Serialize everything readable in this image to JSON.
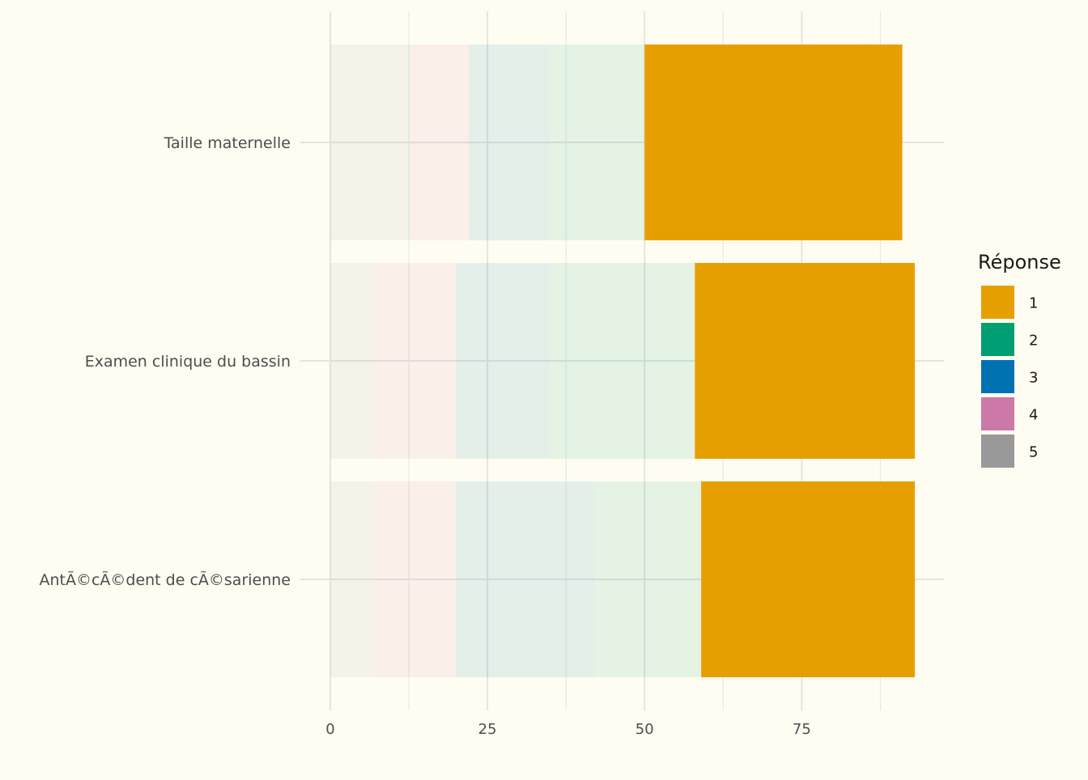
{
  "chart_data": {
    "type": "bar",
    "orientation": "horizontal",
    "stacked": true,
    "categories": [
      "Taille maternelle",
      "Examen clinique du bassin",
      "AntÃ©cÃ©dent de cÃ©sarienne"
    ],
    "stack_order": [
      "5",
      "4",
      "3",
      "2",
      "1"
    ],
    "series": [
      {
        "name": "1",
        "color": "#e69f00",
        "values": [
          41,
          35,
          34
        ]
      },
      {
        "name": "2",
        "color": "#009e73",
        "values": [
          15,
          23,
          17
        ]
      },
      {
        "name": "3",
        "color": "#0072b2",
        "values": [
          13,
          15,
          22
        ]
      },
      {
        "name": "4",
        "color": "#cc79a7",
        "values": [
          9,
          13,
          13
        ]
      },
      {
        "name": "5",
        "color": "#999999",
        "values": [
          13,
          7,
          7
        ]
      }
    ],
    "highlighted_series": "1",
    "dimmed_opacity": 0.1,
    "xlim": [
      0,
      97.5
    ],
    "x_ticks": [
      0,
      25,
      50,
      75
    ],
    "x_minor_ticks": [
      12.5,
      37.5,
      62.5,
      87.5
    ],
    "grid": true,
    "legend": {
      "title": "Réponse",
      "position": "right"
    },
    "background": "#fffdf1",
    "grid_color": "#e5e5e0"
  }
}
